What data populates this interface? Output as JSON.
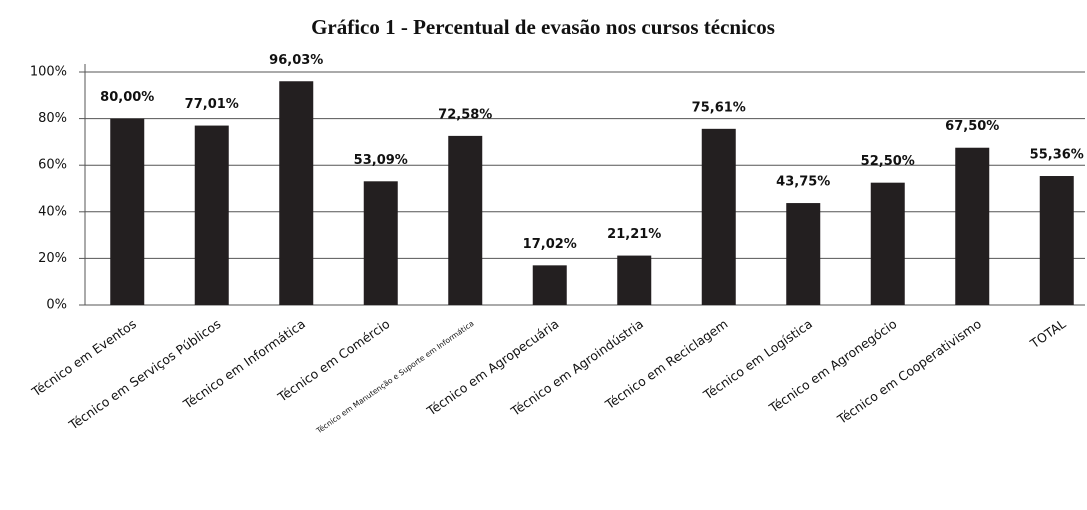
{
  "chart_data": {
    "type": "bar",
    "title": "Gráfico 1 - Percentual de evasão nos cursos técnicos",
    "categories": [
      "Técnico em Eventos",
      "Técnico em Serviços Públicos",
      "Técnico em Informática",
      "Técnico em Comércio",
      "Técnico em Manutenção e Suporte em Informática",
      "Técnico em Agropecuária",
      "Técnico em Agroindústria",
      "Técnico em Reciclagem",
      "Técnico em Logística",
      "Técnico em Agronegócio",
      "Técnico em Cooperativismo",
      "TOTAL"
    ],
    "values": [
      80.0,
      77.01,
      96.03,
      53.09,
      72.58,
      17.02,
      21.21,
      75.61,
      43.75,
      52.5,
      67.5,
      55.36
    ],
    "value_labels": [
      "80,00%",
      "77,01%",
      "96,03%",
      "53,09%",
      "72,58%",
      "17,02%",
      "21,21%",
      "75,61%",
      "43,75%",
      "52,50%",
      "67,50%",
      "55,36%"
    ],
    "color": "#231f20",
    "ylim": [
      0,
      100
    ],
    "yticks": [
      {
        "value": 0,
        "label": "0%"
      },
      {
        "value": 20,
        "label": "20%"
      },
      {
        "value": 40,
        "label": "40%"
      },
      {
        "value": 60,
        "label": "60%"
      },
      {
        "value": 80,
        "label": "80%"
      },
      {
        "value": 100,
        "label": "100%"
      }
    ],
    "grid": true
  }
}
